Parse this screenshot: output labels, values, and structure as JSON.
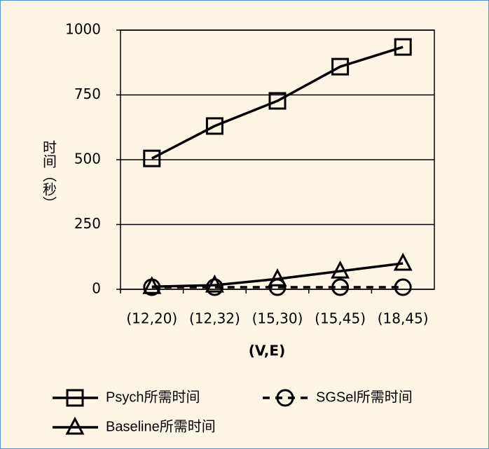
{
  "chart_data": {
    "type": "line",
    "y_label": "时间（秒）",
    "x_label": "(V,E)",
    "categories": [
      "(12,20)",
      "(12,32)",
      "(15,30)",
      "(15,45)",
      "(18,45)"
    ],
    "series": [
      {
        "name": "Psych所需时间",
        "color": "#000000",
        "marker": "square",
        "dashed": false,
        "values": [
          505,
          630,
          727,
          859,
          935
        ]
      },
      {
        "name": "SGSel所需时间",
        "color": "#000000",
        "marker": "circle",
        "dashed": true,
        "values": [
          8,
          8,
          8,
          8,
          8
        ]
      },
      {
        "name": "Baseline所需时间",
        "color": "#000000",
        "marker": "triangle",
        "dashed": false,
        "values": [
          10,
          16,
          40,
          70,
          100
        ]
      }
    ],
    "ylim": [
      0,
      1000
    ],
    "yticks": [
      0,
      250,
      500,
      750,
      1000
    ],
    "grid": true
  }
}
